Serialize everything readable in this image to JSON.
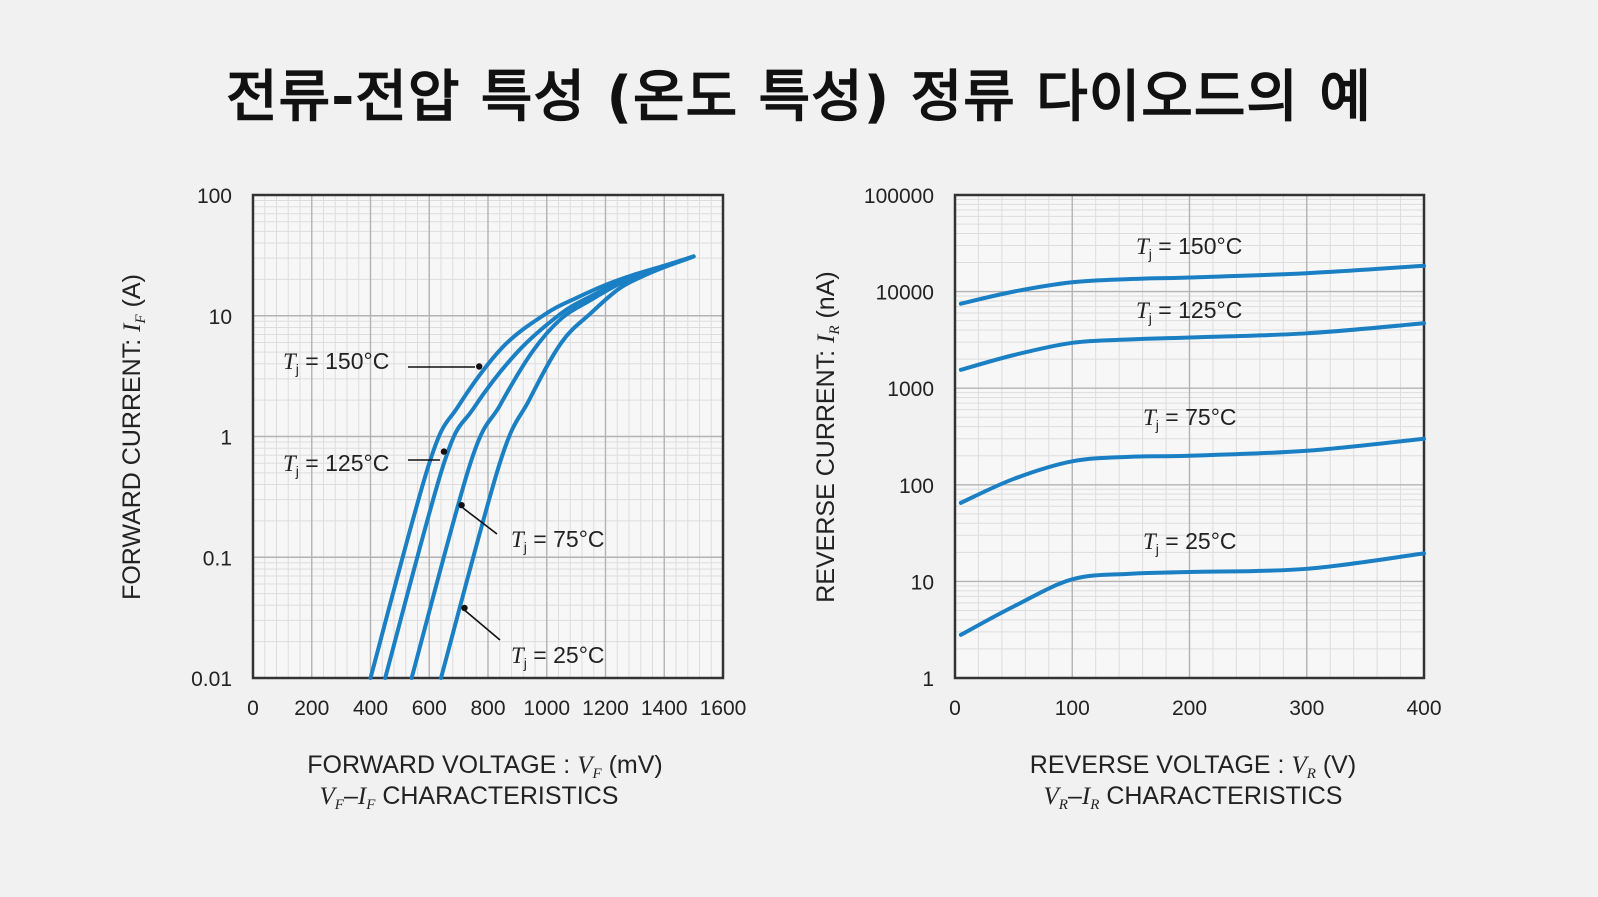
{
  "title": "전류-전압 특성 (온도 특성) 정류 다이오드의 예",
  "colors": {
    "curve": "#1b7fc4",
    "frame": "#333333",
    "grid_major": "#b3b3b3",
    "grid_minor": "#dddddd",
    "background": "#f1f1f1"
  },
  "chart_data": [
    {
      "type": "line",
      "xlim": [
        0,
        1600
      ],
      "ylim": [
        0.01,
        100
      ],
      "yscale": "log",
      "grid": true,
      "x_ticks": [
        "0",
        "200",
        "400",
        "600",
        "800",
        "1000",
        "1200",
        "1400",
        "1600"
      ],
      "y_ticks": [
        "100",
        "10",
        "1",
        "0.1",
        "0.01"
      ],
      "ylabel": {
        "prefix": "FORWARD CURRENT: ",
        "sym": "I",
        "sub": "F",
        "suffix": " (A)"
      },
      "xlabel": {
        "prefix": "FORWARD VOLTAGE : ",
        "sym": "V",
        "sub": "F",
        "suffix": " (mV)"
      },
      "caption": {
        "a": "V",
        "asub": "F",
        "dash": "–",
        "b": "I",
        "bsub": "F",
        "suffix": " CHARACTERISTICS"
      },
      "series": [
        {
          "name": "150°C",
          "x": [
            400,
            600,
            700,
            850,
            1000,
            1100,
            1200,
            1300,
            1400,
            1500
          ],
          "y": [
            0.01,
            0.6,
            1.8,
            5.5,
            10.5,
            14,
            18,
            22,
            26,
            31
          ]
        },
        {
          "name": "125°C",
          "x": [
            450,
            650,
            750,
            900,
            1050,
            1150,
            1250,
            1350,
            1450,
            1500
          ],
          "y": [
            0.01,
            0.6,
            1.7,
            5.0,
            10.5,
            14.5,
            19,
            23.5,
            28,
            31
          ]
        },
        {
          "name": "75°C",
          "x": [
            540,
            740,
            840,
            950,
            1050,
            1150,
            1250,
            1350,
            1450,
            1500
          ],
          "y": [
            0.01,
            0.6,
            1.8,
            5.0,
            9.5,
            13.5,
            18.5,
            23,
            28,
            31
          ]
        },
        {
          "name": "25°C",
          "x": [
            640,
            840,
            940,
            1050,
            1150,
            1250,
            1350,
            1450,
            1500
          ],
          "y": [
            0.01,
            0.6,
            2.0,
            6.0,
            10.5,
            17,
            22.5,
            28,
            31
          ]
        }
      ],
      "annotations": [
        {
          "prefix": "T",
          "sub": "j",
          "text": " = 150°C",
          "dot": [
            770,
            3.8
          ]
        },
        {
          "prefix": "T",
          "sub": "j",
          "text": " = 125°C",
          "dot": [
            650,
            0.75
          ]
        },
        {
          "prefix": "T",
          "sub": "j",
          "text": " = 75°C",
          "dot": [
            710,
            0.27
          ]
        },
        {
          "prefix": "T",
          "sub": "j",
          "text": " = 25°C",
          "dot": [
            720,
            0.038
          ]
        }
      ]
    },
    {
      "type": "line",
      "xlim": [
        0,
        400
      ],
      "ylim": [
        1,
        100000
      ],
      "yscale": "log",
      "grid": true,
      "x_ticks": [
        "0",
        "100",
        "200",
        "300",
        "400"
      ],
      "y_ticks": [
        "100000",
        "10000",
        "1000",
        "100",
        "10",
        "1"
      ],
      "ylabel": {
        "prefix": "REVERSE CURRENT: ",
        "sym": "I",
        "sub": "R",
        "suffix": " (nA)"
      },
      "xlabel": {
        "prefix": "REVERSE VOLTAGE : ",
        "sym": "V",
        "sub": "R",
        "suffix": " (V)"
      },
      "caption": {
        "a": "V",
        "asub": "R",
        "dash": "–",
        "b": "I",
        "bsub": "R",
        "suffix": " CHARACTERISTICS"
      },
      "series": [
        {
          "name": "150°C",
          "x": [
            5,
            50,
            100,
            150,
            200,
            300,
            400
          ],
          "y": [
            7500,
            10000,
            12500,
            13500,
            14000,
            15500,
            18500
          ]
        },
        {
          "name": "125°C",
          "x": [
            5,
            50,
            100,
            150,
            200,
            300,
            400
          ],
          "y": [
            1550,
            2200,
            2950,
            3200,
            3350,
            3700,
            4700
          ]
        },
        {
          "name": "75°C",
          "x": [
            5,
            50,
            100,
            150,
            200,
            300,
            400
          ],
          "y": [
            65,
            115,
            175,
            195,
            200,
            225,
            300
          ]
        },
        {
          "name": "25°C",
          "x": [
            5,
            50,
            100,
            150,
            200,
            300,
            400
          ],
          "y": [
            2.8,
            5.5,
            10.5,
            12,
            12.5,
            13.5,
            19.5
          ]
        }
      ],
      "annotations": [
        {
          "prefix": "T",
          "sub": "j",
          "text": " = 150°C"
        },
        {
          "prefix": "T",
          "sub": "j",
          "text": " = 125°C"
        },
        {
          "prefix": "T",
          "sub": "j",
          "text": " = 75°C"
        },
        {
          "prefix": "T",
          "sub": "j",
          "text": " = 25°C"
        }
      ]
    }
  ]
}
